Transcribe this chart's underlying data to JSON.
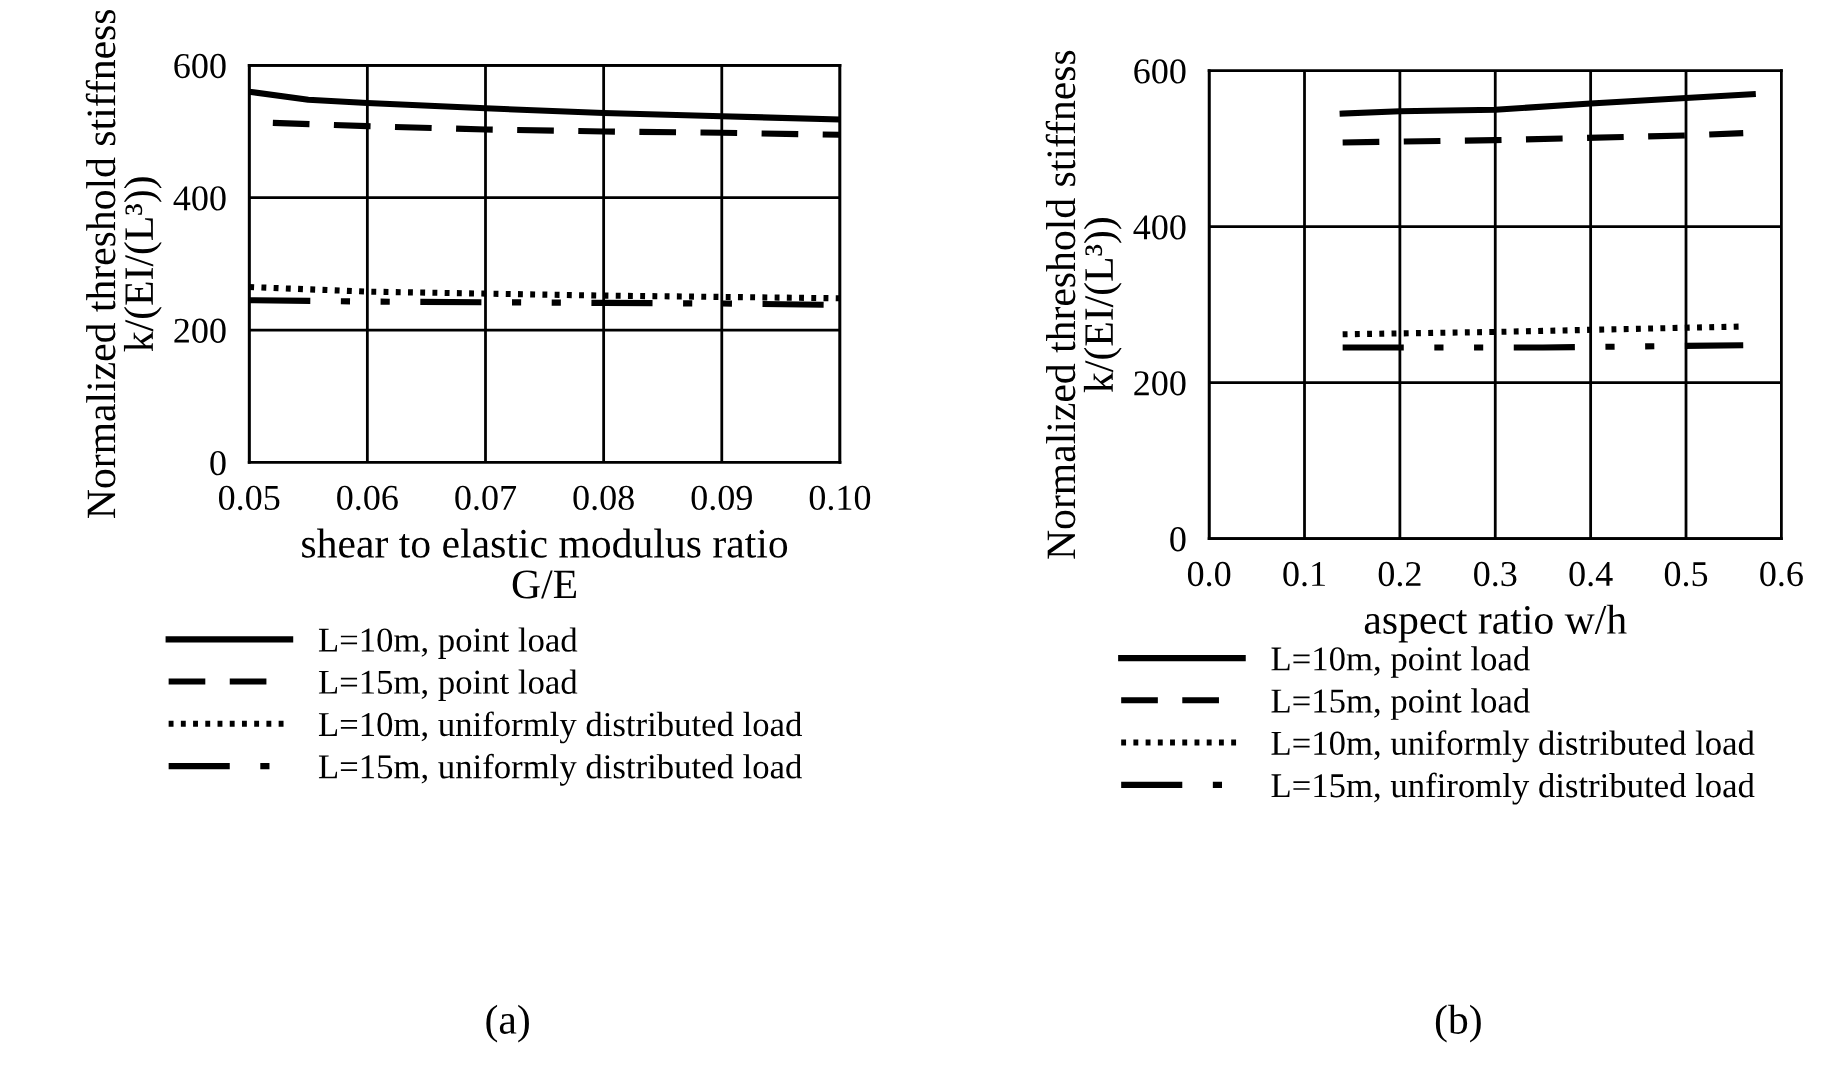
{
  "chart_data": [
    {
      "type": "line",
      "xlabel": "shear to elastic modulus ratio\nG/E",
      "ylabel": "Normalized threshold stiffness\nk/(EI/(L³))",
      "xlim": [
        0.05,
        0.1
      ],
      "xticks": [
        {
          "value": 0.05,
          "label": "0.05"
        },
        {
          "value": 0.06,
          "label": "0.06"
        },
        {
          "value": 0.07,
          "label": "0.07"
        },
        {
          "value": 0.08,
          "label": "0.08"
        },
        {
          "value": 0.09,
          "label": "0.09"
        },
        {
          "value": 0.1,
          "label": "0.10"
        }
      ],
      "ylim": [
        0,
        600
      ],
      "yticks": [
        0,
        200,
        400,
        600
      ],
      "grid": true,
      "legend": "bottom",
      "marker": "none",
      "annotations": [
        "(a)"
      ],
      "series": [
        {
          "name": "L=10m, point load",
          "color": "#000000",
          "line_style": "solid",
          "x": [
            0.05,
            0.055,
            0.06,
            0.07,
            0.08,
            0.09,
            0.1
          ],
          "values": [
            560,
            548,
            543,
            535,
            528,
            523,
            518
          ]
        },
        {
          "name": "L=15m, point load",
          "color": "#000000",
          "line_style": "dashed",
          "x": [
            0.052,
            0.06,
            0.07,
            0.08,
            0.09,
            0.1
          ],
          "values": [
            513,
            508,
            503,
            500,
            498,
            495
          ]
        },
        {
          "name": "L=10m, uniformly distributed load",
          "color": "#000000",
          "line_style": "dotted",
          "x": [
            0.05,
            0.06,
            0.07,
            0.08,
            0.09,
            0.1
          ],
          "values": [
            265,
            258,
            255,
            252,
            250,
            248
          ]
        },
        {
          "name": "L=15m, uniformly distributed load",
          "color": "#000000",
          "line_style": "dashdot",
          "x": [
            0.05,
            0.06,
            0.07,
            0.08,
            0.09,
            0.1
          ],
          "values": [
            245,
            243,
            242,
            241,
            240,
            238
          ]
        }
      ]
    },
    {
      "type": "line",
      "xlabel": "aspect ratio w/h",
      "ylabel": "Normalized threshold stiffness\nk/(EI/(L³))",
      "xlim": [
        0.0,
        0.6
      ],
      "xticks": [
        {
          "value": 0.0,
          "label": "0.0"
        },
        0.1,
        0.2,
        0.3,
        0.4,
        0.5,
        0.6
      ],
      "ylim": [
        0,
        600
      ],
      "yticks": [
        0,
        200,
        400,
        600
      ],
      "grid": true,
      "legend": "bottom",
      "marker": "none",
      "annotations": [
        "(b)"
      ],
      "series": [
        {
          "name": "L=10m, point load",
          "color": "#000000",
          "line_style": "solid",
          "x": [
            0.14,
            0.2,
            0.3,
            0.4,
            0.5,
            0.57
          ],
          "values": [
            545,
            548,
            550,
            558,
            565,
            570
          ]
        },
        {
          "name": "L=15m, point load",
          "color": "#000000",
          "line_style": "dashed",
          "x": [
            0.14,
            0.3,
            0.5,
            0.56
          ],
          "values": [
            508,
            511,
            517,
            520
          ]
        },
        {
          "name": "L=10m, uniformly distributed load",
          "color": "#000000",
          "line_style": "dotted",
          "x": [
            0.14,
            0.3,
            0.56
          ],
          "values": [
            262,
            265,
            272
          ]
        },
        {
          "name": "L=15m, unfiromly distributed load",
          "color": "#000000",
          "line_style": "dashdot",
          "x": [
            0.14,
            0.35,
            0.56
          ],
          "values": [
            245,
            245,
            248
          ]
        }
      ]
    }
  ]
}
